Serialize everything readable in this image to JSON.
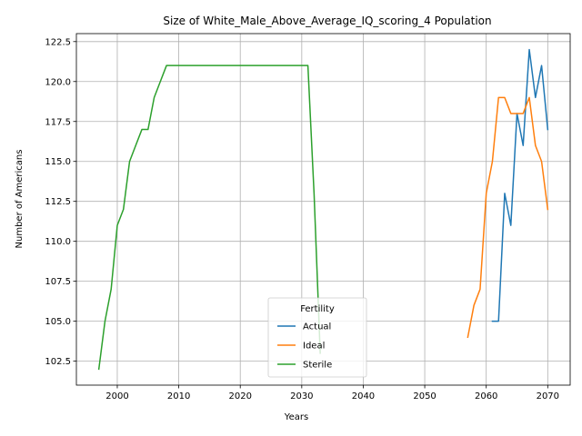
{
  "chart_data": {
    "type": "line",
    "title": "Size of White_Male_Above_Average_IQ_scoring_4 Population",
    "xlabel": "Years",
    "ylabel": "Number of Americans",
    "xlim": [
      1993.35,
      2073.65
    ],
    "ylim": [
      101.0,
      123.0
    ],
    "x_ticks": [
      2000,
      2010,
      2020,
      2030,
      2040,
      2050,
      2060,
      2070
    ],
    "y_ticks": [
      102.5,
      105.0,
      107.5,
      110.0,
      112.5,
      115.0,
      117.5,
      120.0,
      122.5
    ],
    "y_tick_labels": [
      "102.5",
      "105.0",
      "107.5",
      "110.0",
      "112.5",
      "115.0",
      "117.5",
      "120.0",
      "122.5"
    ],
    "grid": true,
    "legend": {
      "title": "Fertility",
      "placement": "lower-center"
    },
    "series": [
      {
        "name": "Actual",
        "color": "#1f77b4",
        "points": [
          [
            2061,
            105
          ],
          [
            2062,
            105
          ],
          [
            2063,
            113
          ],
          [
            2064,
            111
          ],
          [
            2065,
            118
          ],
          [
            2066,
            116
          ],
          [
            2067,
            122
          ],
          [
            2068,
            119
          ],
          [
            2069,
            121
          ],
          [
            2070,
            117
          ]
        ]
      },
      {
        "name": "Ideal",
        "color": "#ff7f0e",
        "points": [
          [
            2057,
            104
          ],
          [
            2058,
            106
          ],
          [
            2059,
            107
          ],
          [
            2060,
            113
          ],
          [
            2061,
            115
          ],
          [
            2062,
            119
          ],
          [
            2063,
            119
          ],
          [
            2064,
            118
          ],
          [
            2065,
            118
          ],
          [
            2066,
            118
          ],
          [
            2067,
            119
          ],
          [
            2068,
            116
          ],
          [
            2069,
            115
          ],
          [
            2070,
            112
          ]
        ]
      },
      {
        "name": "Sterile",
        "color": "#2ca02c",
        "points": [
          [
            1997,
            102
          ],
          [
            1998,
            105
          ],
          [
            1999,
            107
          ],
          [
            2000,
            111
          ],
          [
            2001,
            112
          ],
          [
            2002,
            115
          ],
          [
            2003,
            116
          ],
          [
            2004,
            117
          ],
          [
            2005,
            117
          ],
          [
            2006,
            119
          ],
          [
            2007,
            120
          ],
          [
            2008,
            121
          ],
          [
            2010,
            121
          ],
          [
            2015,
            121
          ],
          [
            2020,
            121
          ],
          [
            2025,
            121
          ],
          [
            2030,
            121
          ],
          [
            2031,
            121
          ],
          [
            2032,
            113
          ],
          [
            2033,
            103
          ]
        ]
      }
    ]
  }
}
